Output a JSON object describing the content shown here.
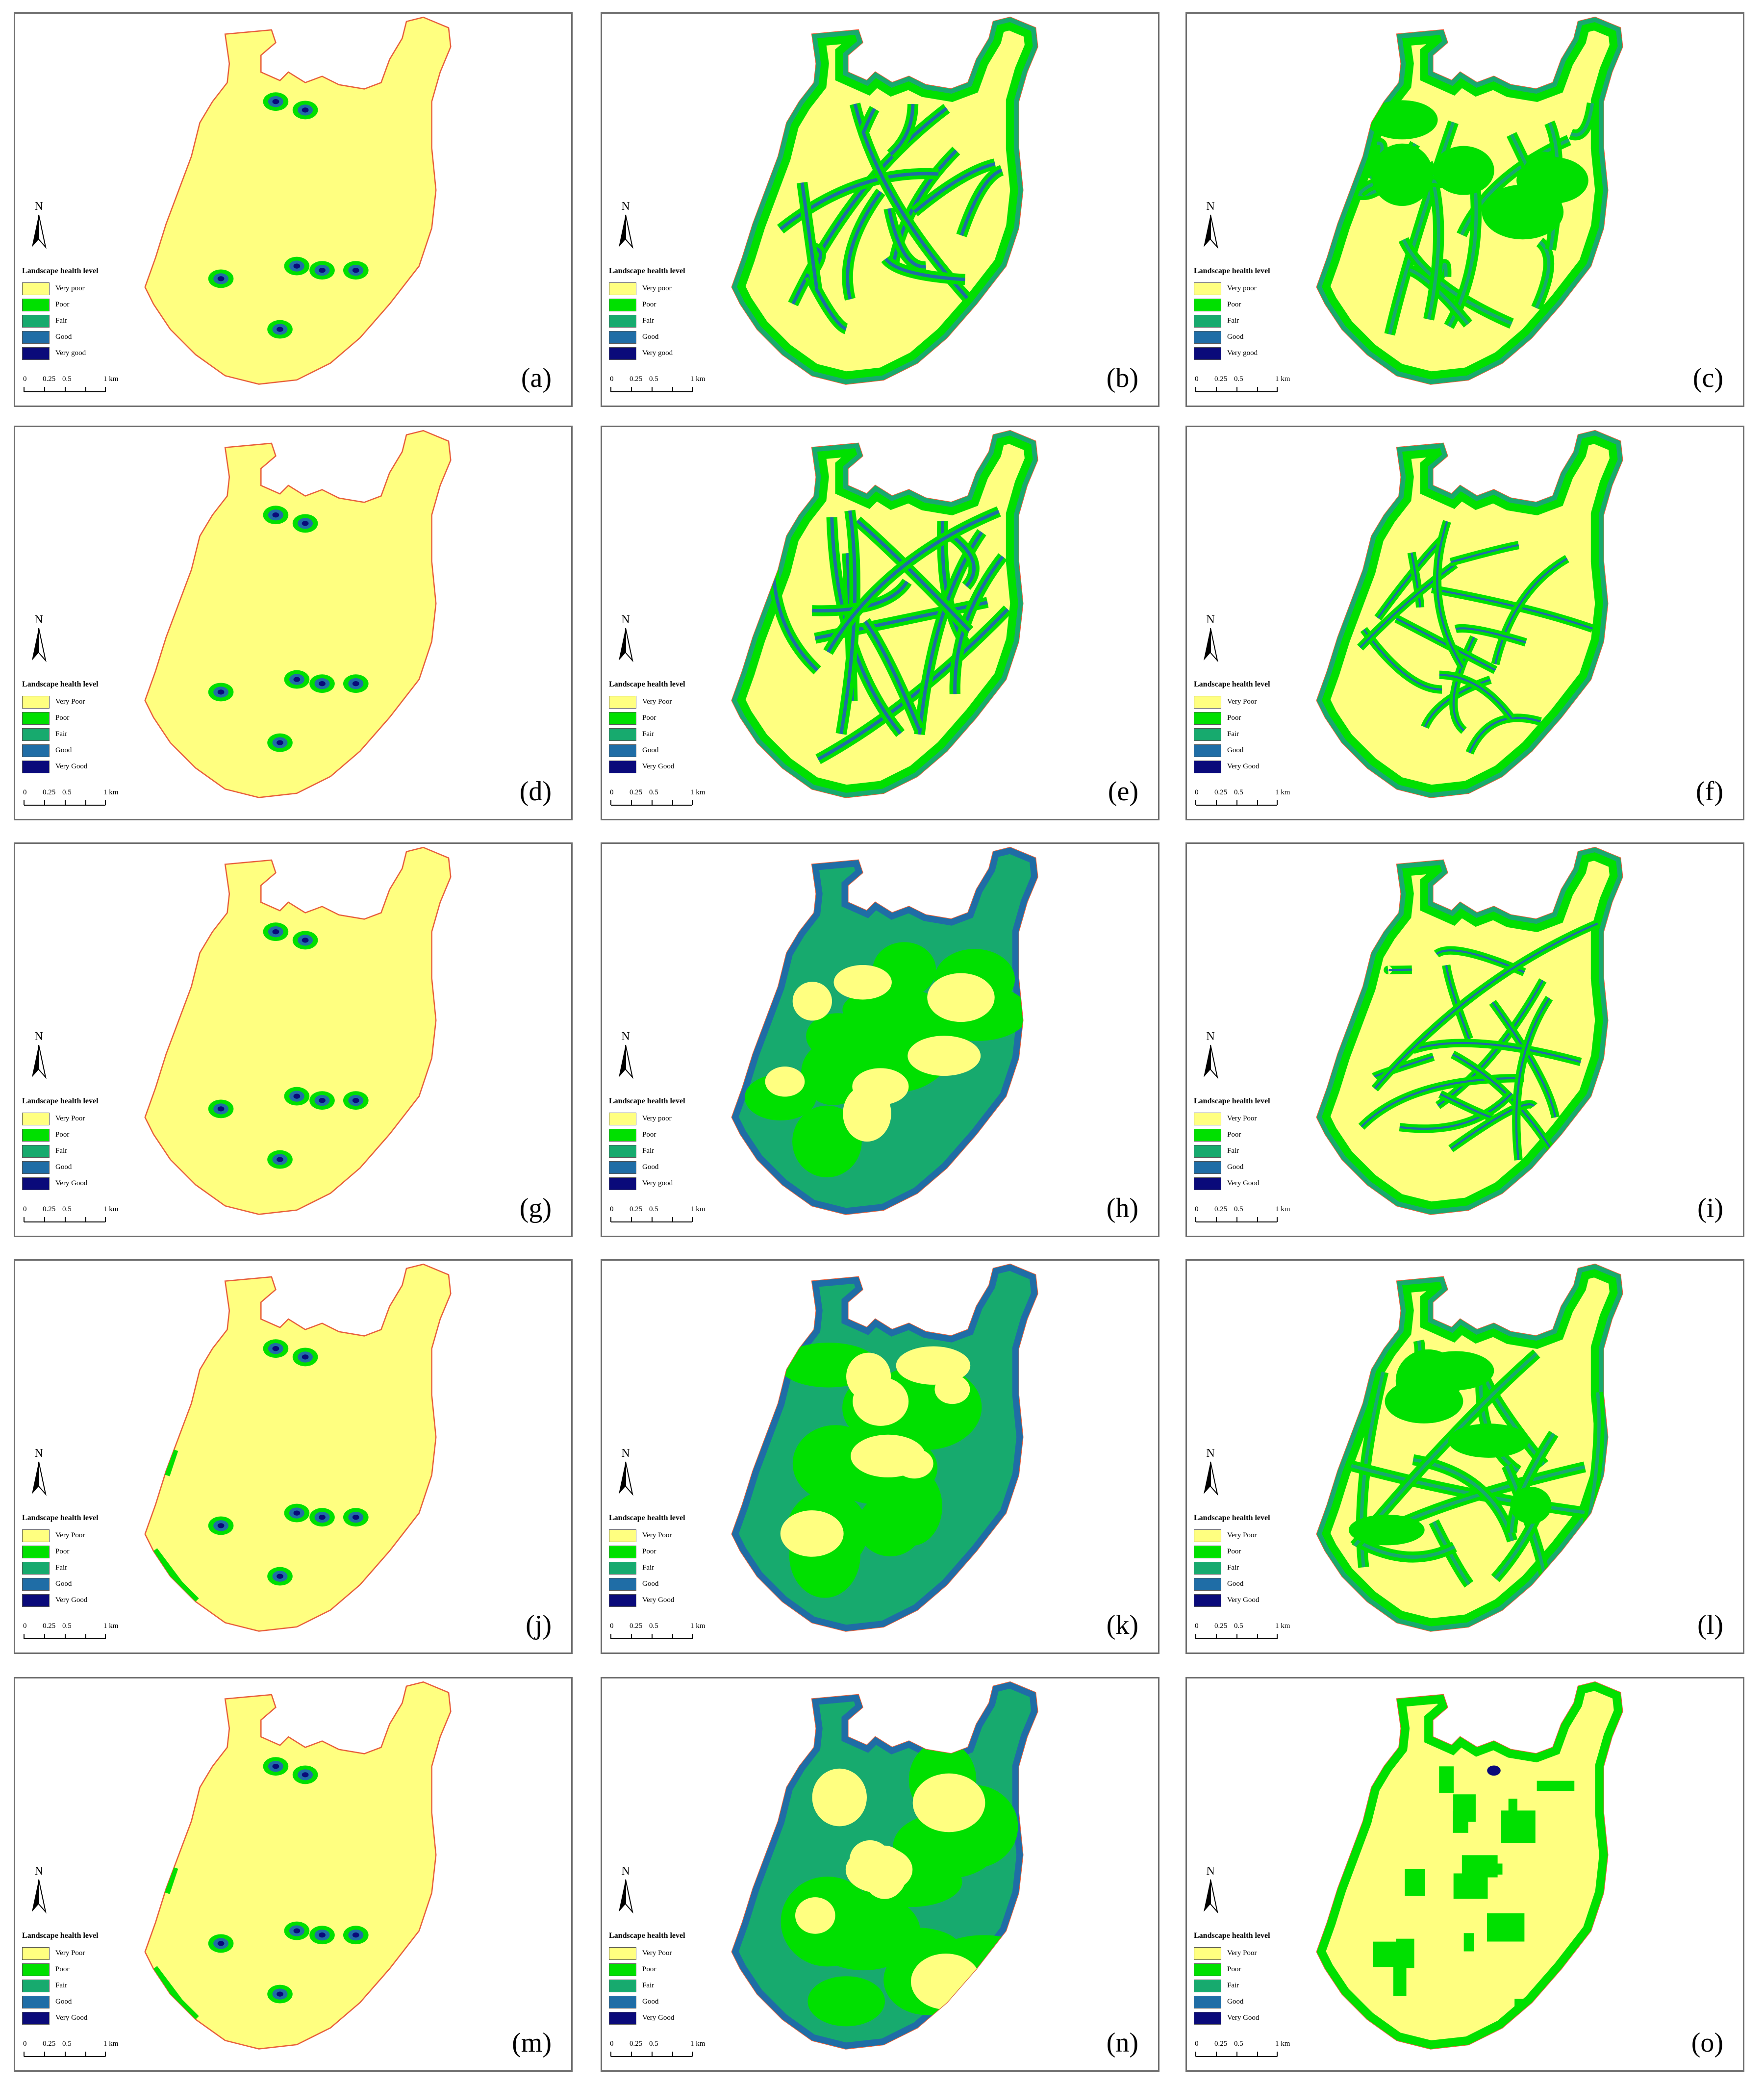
{
  "colors": {
    "very_poor": "#FFFF80",
    "poor": "#00E000",
    "fair": "#17AA6E",
    "good": "#1F6DA6",
    "very_good": "#0A0A7A",
    "boundary": "#E8603C",
    "border": "#6E6E6E"
  },
  "scale": {
    "ticks": [
      "0",
      "0.25",
      "0.5",
      "1 km"
    ]
  },
  "north_label": "N",
  "panels": [
    {
      "label": "(a)",
      "legend_title": "Landscape health level",
      "legend_items": [
        "Very poor",
        "Poor",
        "Fair",
        "Good",
        "Very good"
      ],
      "pattern": "sparse"
    },
    {
      "label": "(b)",
      "legend_title": "Landscape health level",
      "legend_items": [
        "Very poor",
        "Poor",
        "Fair",
        "Good",
        "Very good"
      ],
      "pattern": "network"
    },
    {
      "label": "(c)",
      "legend_title": "Landscape health level",
      "legend_items": [
        "Very poor",
        "Poor",
        "Fair",
        "Good",
        "Very good"
      ],
      "pattern": "network-green"
    },
    {
      "label": "(d)",
      "legend_title": "Landscape health level",
      "legend_items": [
        "Very Poor",
        "Poor",
        "Fair",
        "Good",
        "Very Good"
      ],
      "pattern": "sparse"
    },
    {
      "label": "(e)",
      "legend_title": "Landscape health level",
      "legend_items": [
        "Very Poor",
        "Poor",
        "Fair",
        "Good",
        "Very Good"
      ],
      "pattern": "network"
    },
    {
      "label": "(f)",
      "legend_title": "Landscape health level",
      "legend_items": [
        "Very Poor",
        "Poor",
        "Fair",
        "Good",
        "Very Good"
      ],
      "pattern": "network-thin"
    },
    {
      "label": "(g)",
      "legend_title": "Landscape health level",
      "legend_items": [
        "Very Poor",
        "Poor",
        "Fair",
        "Good",
        "Very Good"
      ],
      "pattern": "sparse"
    },
    {
      "label": "(h)",
      "legend_title": "Landscape health level",
      "legend_items": [
        "Very poor",
        "Poor",
        "Fair",
        "Good",
        "Very good"
      ],
      "pattern": "blobs"
    },
    {
      "label": "(i)",
      "legend_title": "Landscape health level",
      "legend_items": [
        "Very Poor",
        "Poor",
        "Fair",
        "Good",
        "Very Good"
      ],
      "pattern": "network-thin"
    },
    {
      "label": "(j)",
      "legend_title": "Landscape health level",
      "legend_items": [
        "Very Poor",
        "Poor",
        "Fair",
        "Good",
        "Very Good"
      ],
      "pattern": "sparse-more"
    },
    {
      "label": "(k)",
      "legend_title": "Landscape health level",
      "legend_items": [
        "Very Poor",
        "Poor",
        "Fair",
        "Good",
        "Very Good"
      ],
      "pattern": "blobs"
    },
    {
      "label": "(l)",
      "legend_title": "Landscape health level",
      "legend_items": [
        "Very Poor",
        "Poor",
        "Fair",
        "Good",
        "Very Good"
      ],
      "pattern": "network-green"
    },
    {
      "label": "(m)",
      "legend_title": "Landscape health level",
      "legend_items": [
        "Very Poor",
        "Poor",
        "Fair",
        "Good",
        "Very Good"
      ],
      "pattern": "sparse-more"
    },
    {
      "label": "(n)",
      "legend_title": "Landscape health level",
      "legend_items": [
        "Very Poor",
        "Poor",
        "Fair",
        "Good",
        "Very Good"
      ],
      "pattern": "blobs"
    },
    {
      "label": "(o)",
      "legend_title": "Landscape health level",
      "legend_items": [
        "Very Poor",
        "Poor",
        "Fair",
        "Good",
        "Very Good"
      ],
      "pattern": "patches"
    }
  ]
}
